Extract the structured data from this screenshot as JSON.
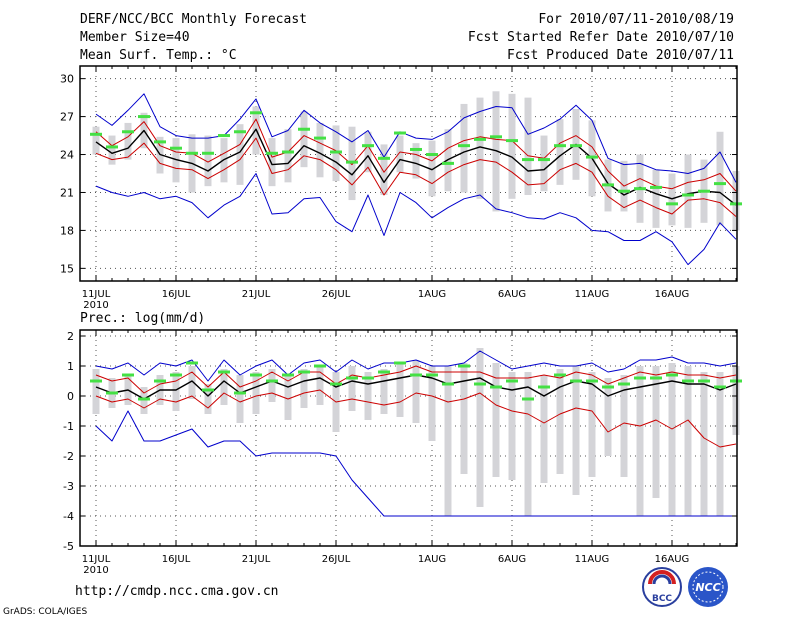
{
  "header": {
    "title": "DERF/NCC/BCC Monthly Forecast",
    "member_size": "Member Size=40",
    "variable": "Mean Surf. Temp.: °C",
    "forecast_period": "For 2010/07/11-2010/08/19",
    "refer_date": "Fcst Started Refer Date 2010/07/10",
    "produced_date": "Fcst Produced Date 2010/07/11"
  },
  "footer": {
    "url": "http://cmdp.ncc.cma.gov.cn",
    "grads_credit": "GrADS: COLA/IGES",
    "logo_bcc_text": "BCC",
    "logo_ncc_text": "NCC"
  },
  "colors": {
    "max_min_line": "#0000cc",
    "spread_line": "#cc0000",
    "mean_line": "#000000",
    "box": "#d4d4d8",
    "marker": "#44e044"
  },
  "chart_data": [
    {
      "type": "box-line",
      "title": "Mean Surf. Temp.: °C",
      "xlabel": "",
      "ylabel": "°C",
      "ylim": [
        14,
        31
      ],
      "yticks": [
        15,
        18,
        21,
        24,
        27,
        30
      ],
      "x_start_day": 0,
      "x_days": 40,
      "xtick_labels": [
        {
          "day": 0,
          "label": "11JUL"
        },
        {
          "day": 5,
          "label": "16JUL"
        },
        {
          "day": 10,
          "label": "21JUL"
        },
        {
          "day": 15,
          "label": "26JUL"
        },
        {
          "day": 21,
          "label": "1AUG"
        },
        {
          "day": 26,
          "label": "6AUG"
        },
        {
          "day": 31,
          "label": "11AUG"
        },
        {
          "day": 36,
          "label": "16AUG"
        }
      ],
      "year_label": "2010",
      "grid": true,
      "series": [
        {
          "name": "max",
          "values": [
            27.2,
            26.3,
            27.5,
            28.8,
            26.2,
            25.5,
            25.3,
            25.3,
            25.5,
            26.8,
            28.4,
            25.4,
            25.9,
            27.5,
            26.5,
            25.8,
            25.0,
            25.9,
            23.8,
            25.8,
            25.3,
            25.2,
            25.8,
            26.9,
            27.4,
            27.8,
            27.7,
            25.6,
            26.1,
            26.8,
            27.9,
            26.7,
            23.7,
            23.2,
            23.3,
            22.8,
            22.7,
            22.5,
            22.9,
            24.2,
            21.8
          ]
        },
        {
          "name": "upper",
          "values": [
            25.8,
            24.7,
            25.4,
            26.6,
            24.7,
            24.2,
            24.1,
            23.4,
            24.1,
            24.8,
            26.8,
            23.8,
            24.2,
            25.5,
            24.9,
            24.3,
            23.2,
            24.7,
            22.6,
            24.2,
            24.0,
            23.5,
            24.5,
            25.1,
            25.4,
            25.2,
            25.1,
            23.9,
            23.7,
            24.9,
            25.5,
            24.6,
            22.7,
            21.5,
            22.1,
            21.5,
            21.3,
            21.8,
            22.0,
            22.5,
            21.1
          ]
        },
        {
          "name": "mean",
          "values": [
            25.0,
            24.1,
            24.5,
            25.9,
            24.0,
            23.6,
            23.3,
            22.7,
            23.6,
            24.2,
            26.0,
            23.2,
            23.3,
            24.7,
            24.1,
            23.4,
            22.4,
            23.9,
            21.8,
            23.6,
            23.3,
            22.8,
            23.6,
            24.2,
            24.6,
            24.3,
            23.8,
            22.7,
            22.8,
            23.9,
            24.8,
            23.7,
            21.7,
            20.8,
            21.4,
            20.9,
            20.5,
            20.9,
            21.1,
            21.0,
            20.0
          ]
        },
        {
          "name": "lower",
          "values": [
            24.1,
            23.6,
            23.8,
            24.9,
            23.3,
            22.9,
            22.8,
            22.1,
            22.8,
            23.6,
            25.3,
            22.5,
            22.8,
            23.9,
            23.6,
            22.8,
            21.6,
            23.0,
            20.8,
            22.6,
            22.4,
            21.7,
            22.6,
            23.2,
            23.6,
            23.4,
            22.6,
            21.6,
            21.7,
            22.8,
            23.3,
            22.6,
            20.7,
            19.8,
            20.4,
            19.8,
            19.3,
            20.4,
            20.5,
            20.2,
            19.1
          ]
        },
        {
          "name": "min",
          "values": [
            21.5,
            21.0,
            20.7,
            21.0,
            20.5,
            20.7,
            20.2,
            19.0,
            20.0,
            20.7,
            22.5,
            19.3,
            19.4,
            20.5,
            20.6,
            18.7,
            17.9,
            20.8,
            17.6,
            21.0,
            20.2,
            19.0,
            19.8,
            20.5,
            20.8,
            19.7,
            19.4,
            19.0,
            18.9,
            19.4,
            19.0,
            18.0,
            17.9,
            17.2,
            17.2,
            17.9,
            17.1,
            15.3,
            16.5,
            18.6,
            17.3
          ]
        },
        {
          "name": "marker",
          "values": [
            25.6,
            24.6,
            25.8,
            27.0,
            25.0,
            24.5,
            24.1,
            24.1,
            25.5,
            25.8,
            27.3,
            24.1,
            24.2,
            26.0,
            25.3,
            24.2,
            23.4,
            24.7,
            23.7,
            25.7,
            24.4,
            24.0,
            23.3,
            24.7,
            25.2,
            25.4,
            25.1,
            23.6,
            23.6,
            24.7,
            24.7,
            23.8,
            21.6,
            21.1,
            21.3,
            21.4,
            20.1,
            20.8,
            21.1,
            21.7,
            20.1
          ]
        },
        {
          "name": "box_hi",
          "values": [
            26.2,
            25.5,
            26.5,
            27.3,
            25.4,
            25.3,
            25.6,
            25.5,
            25.3,
            26.4,
            27.8,
            25.3,
            26.0,
            27.4,
            26.5,
            26.3,
            26.2,
            25.8,
            24.8,
            25.5,
            24.9,
            25.1,
            26.0,
            28.0,
            28.5,
            29.0,
            28.8,
            28.5,
            25.5,
            26.8,
            27.6,
            26.7,
            23.6,
            23.5,
            24.0,
            22.8,
            22.5,
            24.0,
            23.6,
            25.8,
            22.7
          ]
        },
        {
          "name": "box_lo",
          "values": [
            24.0,
            23.2,
            23.6,
            24.5,
            22.5,
            21.8,
            21.0,
            21.5,
            21.8,
            21.6,
            24.0,
            21.5,
            21.8,
            23.0,
            22.2,
            21.9,
            20.4,
            22.6,
            20.8,
            22.6,
            22.1,
            20.7,
            21.1,
            21.0,
            20.5,
            19.5,
            20.5,
            20.8,
            21.1,
            21.6,
            22.0,
            20.7,
            19.5,
            19.5,
            18.6,
            18.2,
            18.4,
            18.2,
            18.6,
            18.4,
            18.0
          ]
        }
      ]
    },
    {
      "type": "box-line",
      "title": "Prec.: log(mm/d)",
      "xlabel": "",
      "ylabel": "log(mm/d)",
      "ylim": [
        -5,
        2.2
      ],
      "yticks": [
        -5,
        -4,
        -3,
        -2,
        -1,
        0,
        1,
        2
      ],
      "x_start_day": 0,
      "x_days": 40,
      "xtick_labels": [
        {
          "day": 0,
          "label": "11JUL"
        },
        {
          "day": 5,
          "label": "16JUL"
        },
        {
          "day": 10,
          "label": "21JUL"
        },
        {
          "day": 15,
          "label": "26JUL"
        },
        {
          "day": 21,
          "label": "1AUG"
        },
        {
          "day": 26,
          "label": "6AUG"
        },
        {
          "day": 31,
          "label": "11AUG"
        },
        {
          "day": 36,
          "label": "16AUG"
        }
      ],
      "year_label": "2010",
      "grid": true,
      "series": [
        {
          "name": "max",
          "values": [
            1.0,
            0.9,
            1.1,
            0.7,
            1.1,
            1.0,
            1.2,
            0.5,
            1.2,
            0.7,
            1.0,
            1.2,
            0.7,
            1.1,
            1.2,
            0.8,
            1.2,
            0.9,
            1.1,
            1.1,
            1.2,
            1.0,
            1.0,
            1.1,
            1.5,
            1.2,
            0.9,
            1.0,
            1.1,
            1.0,
            1.0,
            1.1,
            0.8,
            0.9,
            1.2,
            1.2,
            1.3,
            1.1,
            1.1,
            1.0,
            1.1
          ]
        },
        {
          "name": "upper",
          "values": [
            0.7,
            0.5,
            0.6,
            0.1,
            0.4,
            0.5,
            0.8,
            0.3,
            0.8,
            0.3,
            0.5,
            0.8,
            0.5,
            0.8,
            0.8,
            0.4,
            0.7,
            0.6,
            0.7,
            0.8,
            1.0,
            0.8,
            0.8,
            0.8,
            0.8,
            0.6,
            0.6,
            0.6,
            0.7,
            0.6,
            0.8,
            0.7,
            0.4,
            0.6,
            0.8,
            0.7,
            0.8,
            0.7,
            0.7,
            0.6,
            0.7
          ]
        },
        {
          "name": "mean",
          "values": [
            0.3,
            0.1,
            0.2,
            -0.1,
            0.2,
            0.2,
            0.5,
            0.0,
            0.5,
            0.1,
            0.3,
            0.5,
            0.3,
            0.5,
            0.6,
            0.3,
            0.5,
            0.4,
            0.5,
            0.6,
            0.7,
            0.6,
            0.4,
            0.5,
            0.6,
            0.3,
            0.2,
            0.3,
            0.0,
            0.3,
            0.5,
            0.4,
            0.0,
            0.2,
            0.3,
            0.4,
            0.5,
            0.4,
            0.4,
            0.2,
            0.4
          ]
        },
        {
          "name": "lower",
          "values": [
            0.0,
            -0.2,
            -0.1,
            -0.4,
            -0.1,
            -0.2,
            0.0,
            -0.4,
            0.1,
            -0.2,
            0.0,
            0.1,
            -0.1,
            0.1,
            0.2,
            -0.2,
            -0.1,
            -0.2,
            -0.3,
            -0.2,
            0.1,
            0.0,
            -0.2,
            -0.1,
            0.1,
            -0.3,
            -0.5,
            -0.6,
            -0.9,
            -0.6,
            -0.4,
            -0.5,
            -1.2,
            -0.9,
            -1.0,
            -0.8,
            -1.1,
            -0.8,
            -1.4,
            -1.7,
            -1.6
          ]
        },
        {
          "name": "min",
          "values": [
            -1.0,
            -1.5,
            -0.5,
            -1.5,
            -1.5,
            -1.3,
            -1.1,
            -1.7,
            -1.5,
            -1.5,
            -2.0,
            -1.9,
            -1.9,
            -1.9,
            -1.9,
            -2.0,
            -2.8,
            -3.4,
            -4.0,
            -4.0,
            -4.0,
            -4.0,
            -4.0,
            -4.0,
            -4.0,
            -4.0,
            -4.0,
            -4.0,
            -4.0,
            -4.0,
            -4.0,
            -4.0,
            -4.0,
            -4.0,
            -4.0,
            -4.0,
            -4.0,
            -4.0,
            -4.0,
            -4.0,
            -4.0
          ]
        },
        {
          "name": "marker",
          "values": [
            0.5,
            0.1,
            0.7,
            -0.1,
            0.5,
            0.7,
            1.1,
            0.2,
            0.8,
            0.1,
            0.7,
            0.5,
            0.7,
            0.8,
            1.0,
            0.4,
            0.6,
            0.6,
            0.8,
            1.1,
            0.7,
            0.7,
            0.4,
            1.0,
            0.4,
            0.3,
            0.5,
            -0.1,
            0.3,
            0.7,
            0.5,
            0.5,
            0.3,
            0.4,
            0.6,
            0.6,
            0.7,
            0.5,
            0.5,
            0.3,
            0.5
          ]
        },
        {
          "name": "box_hi",
          "values": [
            0.9,
            0.6,
            0.7,
            0.3,
            0.7,
            0.8,
            1.0,
            0.4,
            0.9,
            0.7,
            0.8,
            0.9,
            0.7,
            0.9,
            1.0,
            0.8,
            1.0,
            0.8,
            0.9,
            1.1,
            1.2,
            1.0,
            1.0,
            1.1,
            1.6,
            1.1,
            0.8,
            0.8,
            0.7,
            0.9,
            1.0,
            0.8,
            0.6,
            0.7,
            1.0,
            1.0,
            1.1,
            1.0,
            0.8,
            0.8,
            1.0
          ]
        },
        {
          "name": "box_lo",
          "values": [
            -0.6,
            -0.4,
            -0.3,
            -0.6,
            -0.3,
            -0.5,
            -0.1,
            -0.6,
            -0.3,
            -0.9,
            -0.6,
            -0.2,
            -0.8,
            -0.4,
            -0.3,
            -1.2,
            -0.5,
            -0.8,
            -0.6,
            -0.7,
            -0.9,
            -1.5,
            -4.0,
            -2.6,
            -3.7,
            -2.7,
            -2.8,
            -4.0,
            -2.9,
            -2.6,
            -3.3,
            -2.7,
            -2.0,
            -2.7,
            -4.0,
            -3.4,
            -4.0,
            -4.0,
            -4.0,
            -4.0,
            -1.3
          ]
        }
      ]
    }
  ]
}
